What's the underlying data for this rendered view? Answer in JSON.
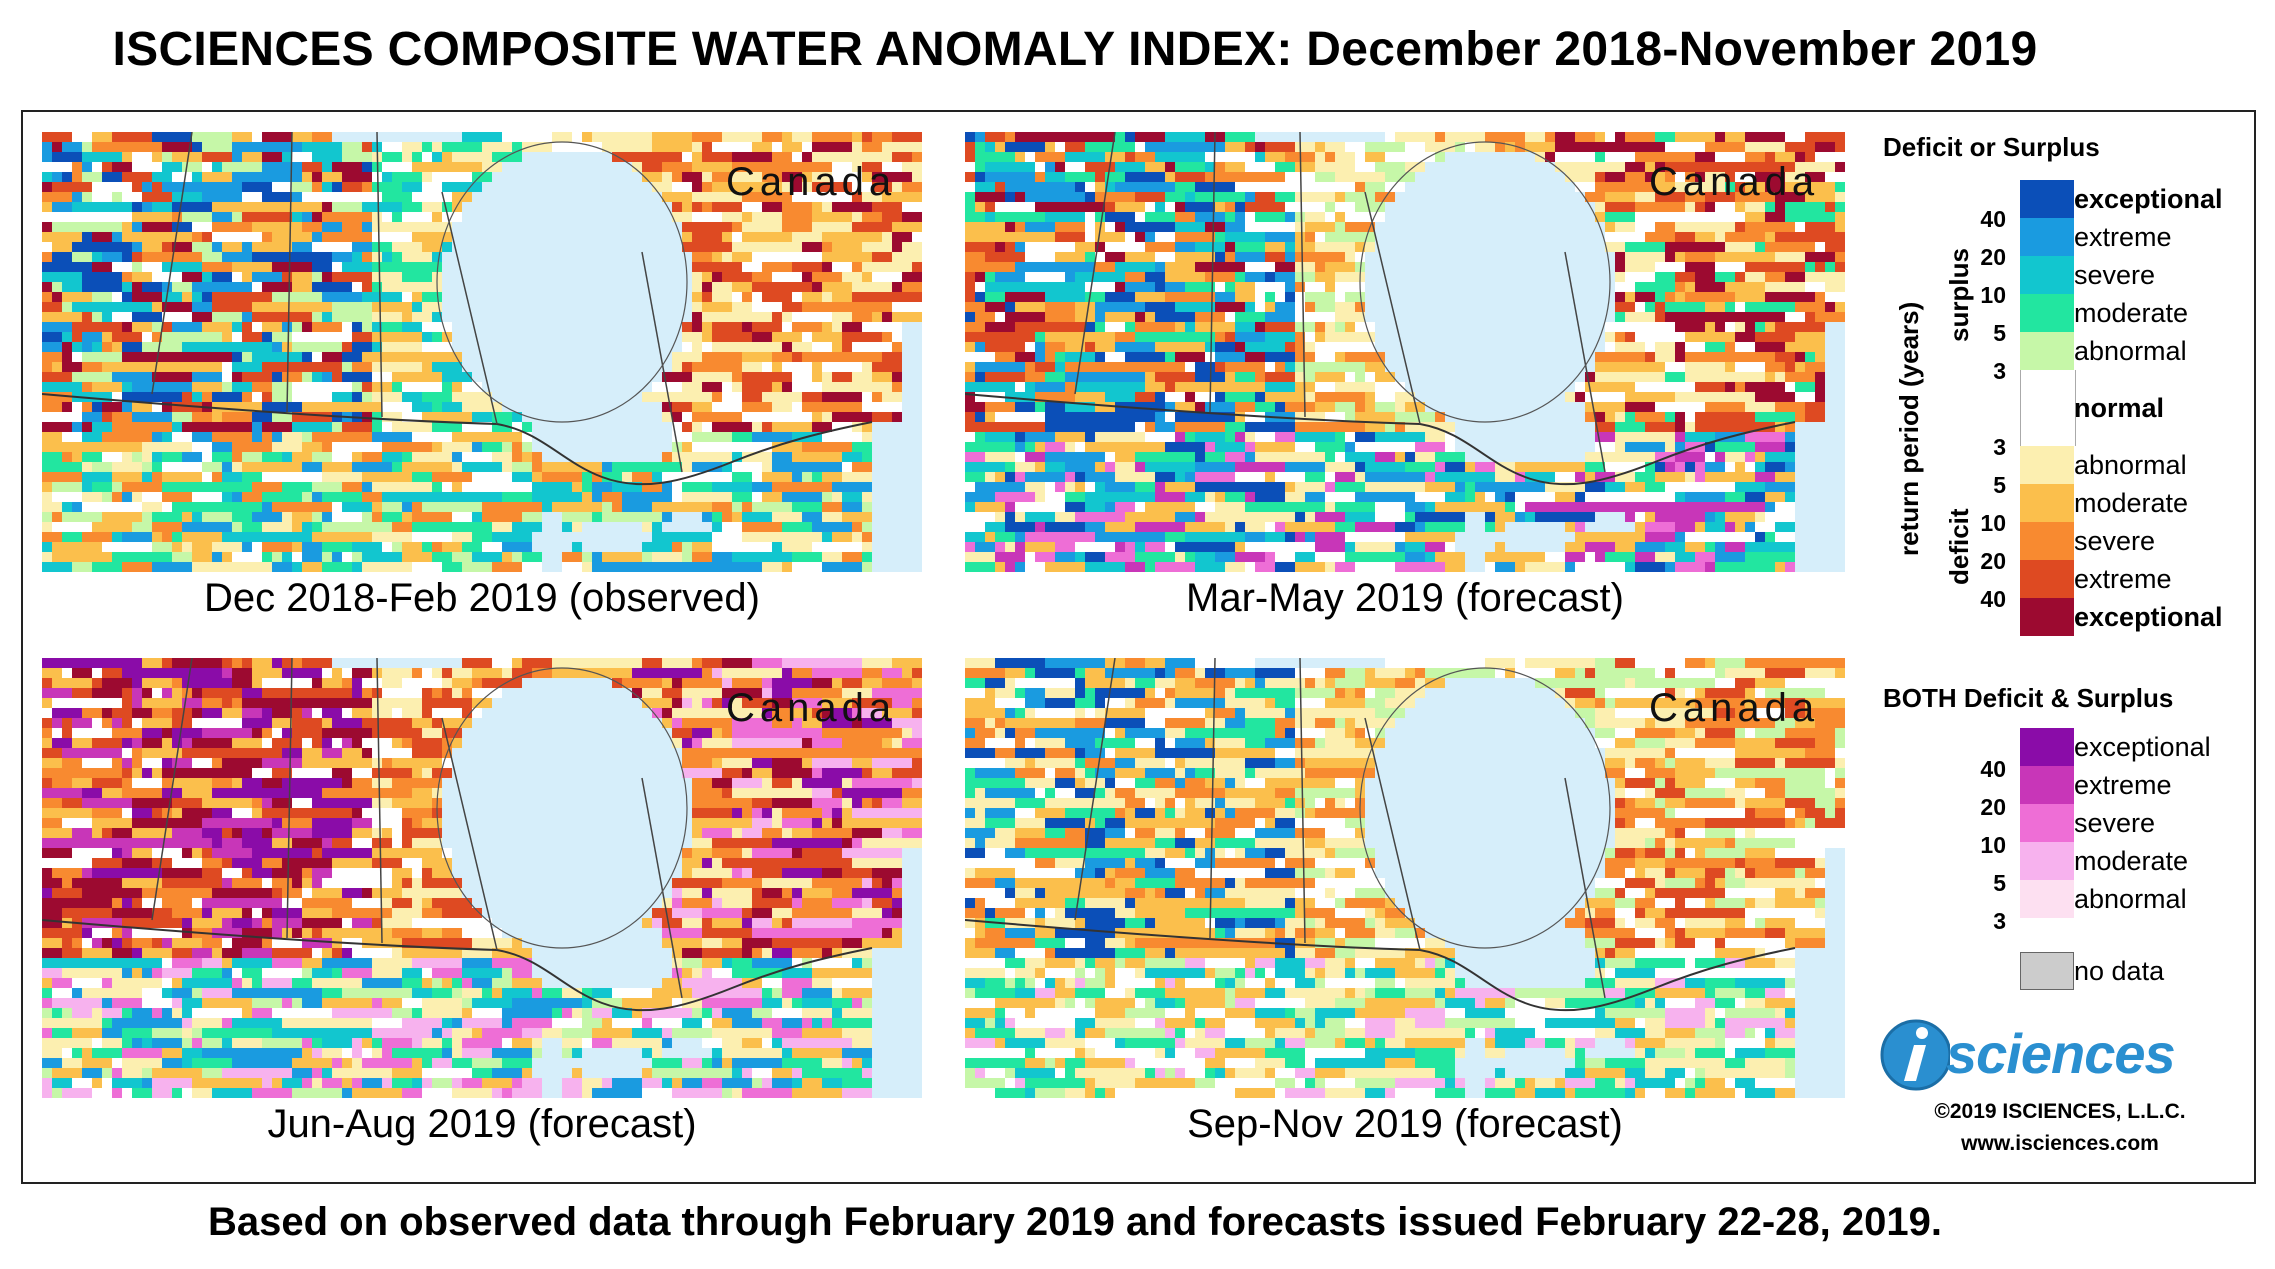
{
  "title": "ISCIENCES COMPOSITE WATER ANOMALY INDEX: December 2018-November 2019",
  "footer": "Based on observed data through February 2019 and forecasts issued February 22-28, 2019.",
  "maps": [
    {
      "region": "Canada",
      "caption": "Dec 2018-Feb 2019 (observed)"
    },
    {
      "region": "Canada",
      "caption": "Mar-May 2019 (forecast)"
    },
    {
      "region": "Canada",
      "caption": "Jun-Aug 2019 (forecast)"
    },
    {
      "region": "Canada",
      "caption": "Sep-Nov 2019 (forecast)"
    }
  ],
  "legend": {
    "title1": "Deficit or Surplus",
    "axis_label": "return period (years)",
    "surplus_label": "surplus",
    "deficit_label": "deficit",
    "surplus": [
      {
        "label": "exceptional",
        "color": "#0b4fb8"
      },
      {
        "label": "extreme",
        "color": "#1a9be0"
      },
      {
        "label": "severe",
        "color": "#12c6cf"
      },
      {
        "label": "moderate",
        "color": "#22e6a0"
      },
      {
        "label": "abnormal",
        "color": "#c6f7a8"
      }
    ],
    "surplus_numbers": [
      "40",
      "20",
      "10",
      "5",
      "3"
    ],
    "normal": {
      "label": "normal",
      "color": "#ffffff"
    },
    "deficit": [
      {
        "label": "abnormal",
        "color": "#fcefb0"
      },
      {
        "label": "moderate",
        "color": "#fbbf4c"
      },
      {
        "label": "severe",
        "color": "#f88a30"
      },
      {
        "label": "extreme",
        "color": "#de4a22"
      },
      {
        "label": "exceptional",
        "color": "#9c0a30"
      }
    ],
    "deficit_numbers": [
      "3",
      "5",
      "10",
      "20",
      "40"
    ],
    "title2": "BOTH Deficit & Surplus",
    "both": [
      {
        "label": "exceptional",
        "color": "#8a0ca8"
      },
      {
        "label": "extreme",
        "color": "#c836b8"
      },
      {
        "label": "severe",
        "color": "#ee6ed6"
      },
      {
        "label": "moderate",
        "color": "#f7b2ee"
      },
      {
        "label": "abnormal",
        "color": "#fde0f1"
      }
    ],
    "both_numbers": [
      "40",
      "20",
      "10",
      "5",
      "3"
    ],
    "nodata": {
      "label": "no data",
      "color": "#cccccc"
    }
  },
  "brand": {
    "logo": "isciences",
    "copyright": "©2019 ISCIENCES, L.L.C.",
    "website": "www.isciences.com",
    "color": "#2a8fd0"
  }
}
